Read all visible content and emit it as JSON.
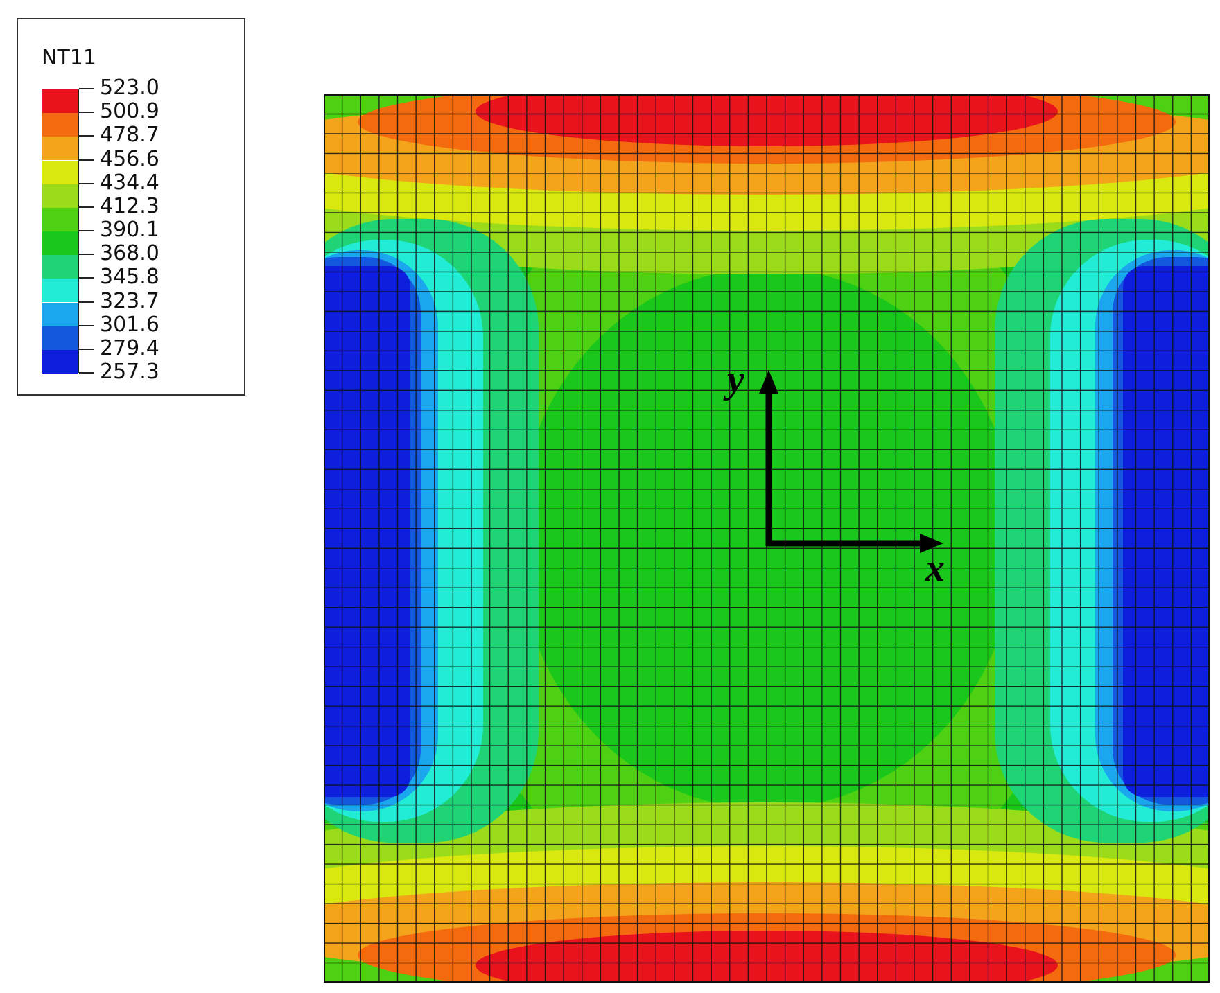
{
  "legend": {
    "title": "NT11",
    "values": [
      "523.0",
      "500.9",
      "478.7",
      "456.6",
      "434.4",
      "412.3",
      "390.1",
      "368.0",
      "345.8",
      "323.7",
      "301.6",
      "279.4",
      "257.3"
    ],
    "colors": [
      "#e8131c",
      "#f46a0e",
      "#f4a41a",
      "#d9e80f",
      "#9bdc1a",
      "#4ed112",
      "#19c81b",
      "#1fd475",
      "#22ecd6",
      "#1aa7ee",
      "#1457df",
      "#0d1edc"
    ]
  },
  "axes": {
    "x_label": "x",
    "y_label": "y"
  },
  "mesh": {
    "cols": 48,
    "rows": 45
  }
}
